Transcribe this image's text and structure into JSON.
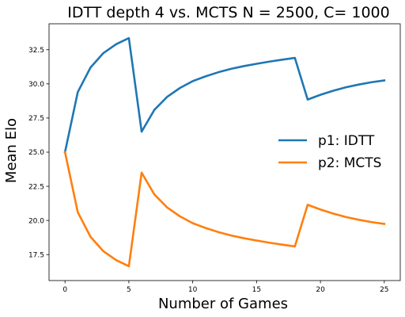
{
  "chart_data": {
    "type": "line",
    "title": "IDTT depth 4 vs. MCTS N = 2500, C= 1000",
    "xlabel": "Number of Games",
    "ylabel": "Mean Elo",
    "xlim": [
      -1.25,
      26.25
    ],
    "ylim": [
      15.6,
      34.4
    ],
    "xticks": [
      0,
      5,
      10,
      15,
      20,
      25
    ],
    "yticks": [
      17.5,
      20.0,
      22.5,
      25.0,
      27.5,
      30.0,
      32.5
    ],
    "ytick_labels": [
      "17.5",
      "20.0",
      "22.5",
      "25.0",
      "27.5",
      "30.0",
      "32.5"
    ],
    "grid": false,
    "legend_position": "center-right",
    "x": [
      0,
      1,
      2,
      3,
      4,
      5,
      6,
      7,
      8,
      9,
      10,
      11,
      12,
      13,
      14,
      15,
      16,
      17,
      18,
      19,
      20,
      21,
      22,
      23,
      24,
      25
    ],
    "series": [
      {
        "name": "p1: IDTT",
        "color": "#1f77b4",
        "values": [
          25.0,
          29.4,
          31.2,
          32.25,
          32.9,
          33.35,
          26.5,
          28.1,
          29.05,
          29.7,
          30.2,
          30.55,
          30.85,
          31.1,
          31.3,
          31.47,
          31.63,
          31.77,
          31.9,
          28.85,
          29.2,
          29.5,
          29.75,
          29.95,
          30.12,
          30.25
        ]
      },
      {
        "name": "p2: MCTS",
        "color": "#ff7f0e",
        "values": [
          25.0,
          20.6,
          18.8,
          17.75,
          17.1,
          16.65,
          23.5,
          21.9,
          20.95,
          20.3,
          19.8,
          19.45,
          19.15,
          18.9,
          18.7,
          18.53,
          18.37,
          18.23,
          18.1,
          21.15,
          20.8,
          20.5,
          20.25,
          20.05,
          19.88,
          19.75
        ]
      }
    ]
  }
}
